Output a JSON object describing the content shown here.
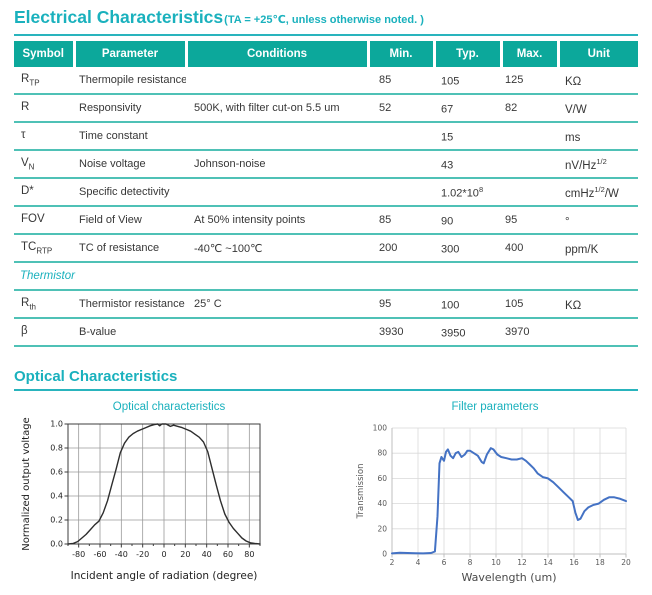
{
  "page": {
    "electrical_title": "Electrical Characteristics",
    "electrical_note": "(TA = +25℃, unless otherwise noted. )",
    "optical_title": "Optical Characteristics"
  },
  "colors": {
    "table_header_teal": "#0ca89b",
    "row_separator_teal": "#4fc1b6",
    "title_cyan": "#1ab1bd",
    "body_text": "#373737",
    "filter_curve_blue": "#4472c4"
  },
  "table": {
    "headers": [
      "Symbol",
      "Parameter",
      "Conditions",
      "Min.",
      "Typ.",
      "Max.",
      "Unit"
    ],
    "rows": [
      {
        "symbol": "R",
        "symbol_sub": "TP",
        "parameter": "Thermopile resistance",
        "conditions": "",
        "min": "85",
        "typ": "105",
        "max": "125",
        "unit": "KΩ"
      },
      {
        "symbol": "R",
        "parameter": "Responsivity",
        "conditions": "500K, with filter cut-on 5.5 um",
        "min": "52",
        "typ": "67",
        "max": "82",
        "unit": "V/W"
      },
      {
        "symbol": "τ",
        "parameter": "Time constant",
        "typ": "15",
        "unit": "ms"
      },
      {
        "symbol": "V",
        "symbol_sub": "N",
        "parameter": "Noise voltage",
        "conditions": "Johnson-noise",
        "typ": "43",
        "unit": "nV/Hz",
        "unit_sup": "1/2"
      },
      {
        "symbol": "D*",
        "parameter": "Specific detectivity",
        "typ": "1.02*10",
        "typ_sup": "8",
        "unit": "cmHz",
        "unit_sup": "1/2",
        "unit_tail": "/W"
      },
      {
        "symbol": "FOV",
        "parameter": "Field of View",
        "conditions": "At 50% intensity points",
        "min": "85",
        "typ": "90",
        "max": "95",
        "unit": "°"
      },
      {
        "symbol": "TC",
        "symbol_sub": "RTP",
        "parameter": "TC of resistance",
        "conditions": "-40℃ ~100℃",
        "min": "200",
        "typ": "300",
        "max": "400",
        "unit": "ppm/K"
      },
      {
        "section": "Thermistor"
      },
      {
        "symbol": "R",
        "symbol_sub": "th",
        "parameter": "Thermistor resistance",
        "conditions": "25° C",
        "min": "95",
        "typ": "100",
        "max": "105",
        "unit": "KΩ"
      },
      {
        "symbol": "β",
        "parameter": "B-value",
        "min": "3930",
        "typ": "3950",
        "max": "3970"
      }
    ]
  },
  "chart_data": [
    {
      "type": "line",
      "title": "Optical characteristics",
      "xlabel": "Incident angle of radiation (degree)",
      "ylabel": "Normalized output voltage",
      "xlim": [
        -90,
        90
      ],
      "ylim": [
        0,
        1
      ],
      "xticks": [
        -80,
        -60,
        -40,
        -20,
        0,
        20,
        40,
        60,
        80
      ],
      "xticks_minor": [
        -90,
        -70,
        -50,
        -30,
        -10,
        10,
        30,
        50,
        70,
        90
      ],
      "yticks": [
        0,
        0.2,
        0.4,
        0.6,
        0.8,
        1
      ],
      "ytick_decimals": 1,
      "grid": true,
      "grid_color": "#9a9a9a",
      "frame": true,
      "ytick_marks": true,
      "axis_color": "#3c3c3c",
      "label_color": "#1f1f1f",
      "line_color": "#2e2e2e",
      "line_width": 1.4,
      "legend": "none",
      "series": [
        {
          "name": "Normalized output voltage",
          "x": [
            -90,
            -85,
            -81,
            -77,
            -73,
            -69,
            -65,
            -61,
            -57,
            -53,
            -49,
            -45,
            -41,
            -37,
            -33,
            -29,
            -25,
            -21,
            -17,
            -13,
            -9,
            -6,
            -4,
            -2,
            0,
            2,
            4,
            6,
            9,
            13,
            17,
            21,
            25,
            29,
            33,
            37,
            41,
            45,
            49,
            53,
            57,
            61,
            65,
            69,
            73,
            77,
            81,
            85,
            90
          ],
          "y": [
            0,
            0.005,
            0.02,
            0.05,
            0.08,
            0.12,
            0.16,
            0.19,
            0.26,
            0.36,
            0.49,
            0.62,
            0.76,
            0.84,
            0.89,
            0.92,
            0.94,
            0.955,
            0.97,
            0.985,
            0.995,
            1,
            0.985,
            1,
            1,
            1,
            0.99,
            0.98,
            0.99,
            0.98,
            0.97,
            0.955,
            0.94,
            0.915,
            0.89,
            0.85,
            0.77,
            0.63,
            0.49,
            0.36,
            0.25,
            0.18,
            0.13,
            0.09,
            0.05,
            0.025,
            0.01,
            0.005,
            0
          ]
        }
      ]
    },
    {
      "type": "line",
      "title": "Filter parameters",
      "xlabel": "Wavelength (um)",
      "ylabel": "Transmission",
      "xlim": [
        2,
        20
      ],
      "ylim": [
        0,
        100
      ],
      "xticks": [
        2,
        4,
        6,
        8,
        10,
        12,
        14,
        16,
        18,
        20
      ],
      "yticks": [
        0,
        20,
        40,
        60,
        80,
        100
      ],
      "ytick_decimals": 0,
      "grid": true,
      "grid_color": "#d9d9d9",
      "frame": false,
      "ytick_marks": false,
      "axis_color": "#bfbfbf",
      "label_color": "#595959",
      "line_color": "#4472c4",
      "line_width": 2,
      "legend": "none",
      "series": [
        {
          "name": "Transmission",
          "x": [
            2,
            2.6,
            3.2,
            3.8,
            4.4,
            5,
            5.3,
            5.5,
            5.65,
            5.8,
            6,
            6.15,
            6.3,
            6.5,
            6.7,
            6.9,
            7.1,
            7.35,
            7.6,
            7.8,
            8,
            8.3,
            8.6,
            8.9,
            9.05,
            9.3,
            9.6,
            9.8,
            10.1,
            10.4,
            10.8,
            11.2,
            11.6,
            12,
            12.3,
            12.6,
            12.9,
            13.2,
            13.6,
            14,
            14.4,
            14.8,
            15.2,
            15.6,
            15.9,
            16.1,
            16.3,
            16.5,
            16.8,
            17.1,
            17.5,
            17.9,
            18.3,
            18.7,
            19.1,
            19.5,
            20
          ],
          "y": [
            0.5,
            1,
            0.8,
            0.6,
            0.5,
            0.8,
            2,
            30,
            72,
            77,
            74,
            81,
            83,
            78,
            76,
            80,
            81,
            77,
            79,
            82,
            82,
            80,
            78,
            73,
            72,
            79,
            84,
            83,
            79,
            77,
            76,
            75,
            75,
            76,
            74,
            71,
            68,
            64,
            61,
            60,
            57,
            53,
            49,
            45,
            42,
            33,
            27,
            28,
            34,
            37,
            39,
            40,
            43,
            45,
            45,
            44,
            42
          ]
        }
      ]
    }
  ]
}
